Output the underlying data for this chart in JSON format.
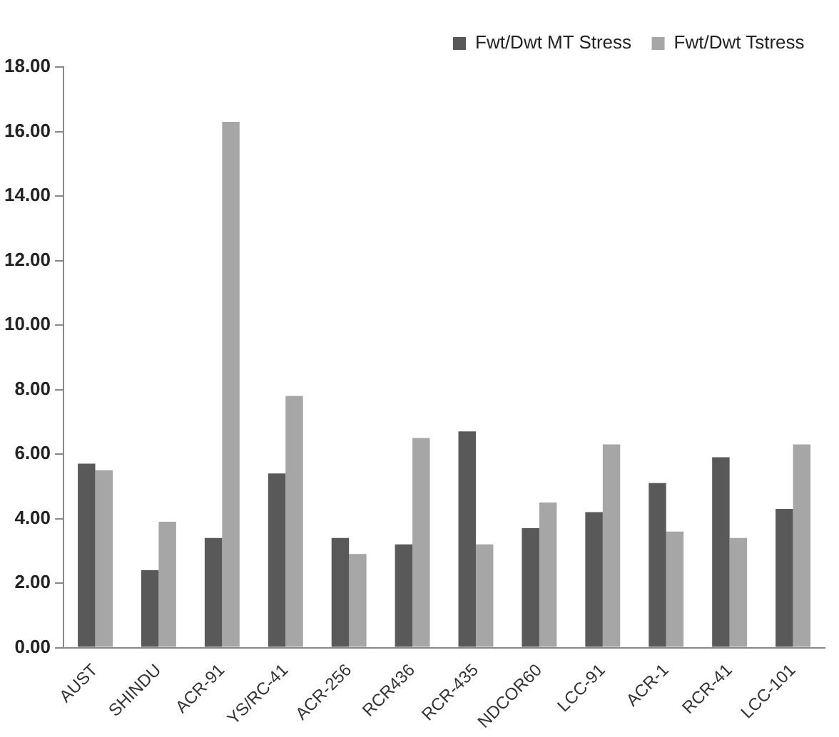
{
  "chart_data": {
    "type": "bar",
    "categories": [
      "AUST",
      "SHINDU",
      "ACR-91",
      "YS/RC-41",
      "ACR-256",
      "RCR436",
      "RCR-435",
      "NDCOR60",
      "LCC-91",
      "ACR-1",
      "RCR-41",
      "LCC-101"
    ],
    "series": [
      {
        "name": "Fwt/Dwt MT Stress",
        "color": "#595959",
        "values": [
          5.7,
          2.4,
          3.4,
          5.4,
          3.4,
          3.2,
          6.7,
          3.7,
          4.2,
          5.1,
          5.9,
          4.3
        ]
      },
      {
        "name": "Fwt/Dwt Tstress",
        "color": "#a6a6a6",
        "values": [
          5.5,
          3.9,
          16.3,
          7.8,
          2.9,
          6.5,
          3.2,
          4.5,
          6.3,
          3.6,
          3.4,
          6.3
        ]
      }
    ],
    "ylim": [
      0,
      18
    ],
    "yticks": [
      {
        "value": 0,
        "label": "0.00"
      },
      {
        "value": 2,
        "label": "2.00"
      },
      {
        "value": 4,
        "label": "4.00"
      },
      {
        "value": 6,
        "label": "6.00"
      },
      {
        "value": 8,
        "label": "8.00"
      },
      {
        "value": 10,
        "label": "10.00"
      },
      {
        "value": 12,
        "label": "12.00"
      },
      {
        "value": 14,
        "label": "14.00"
      },
      {
        "value": 16,
        "label": "16.00"
      },
      {
        "value": 18,
        "label": "18.00"
      }
    ],
    "grid": false,
    "legend": "top right"
  }
}
